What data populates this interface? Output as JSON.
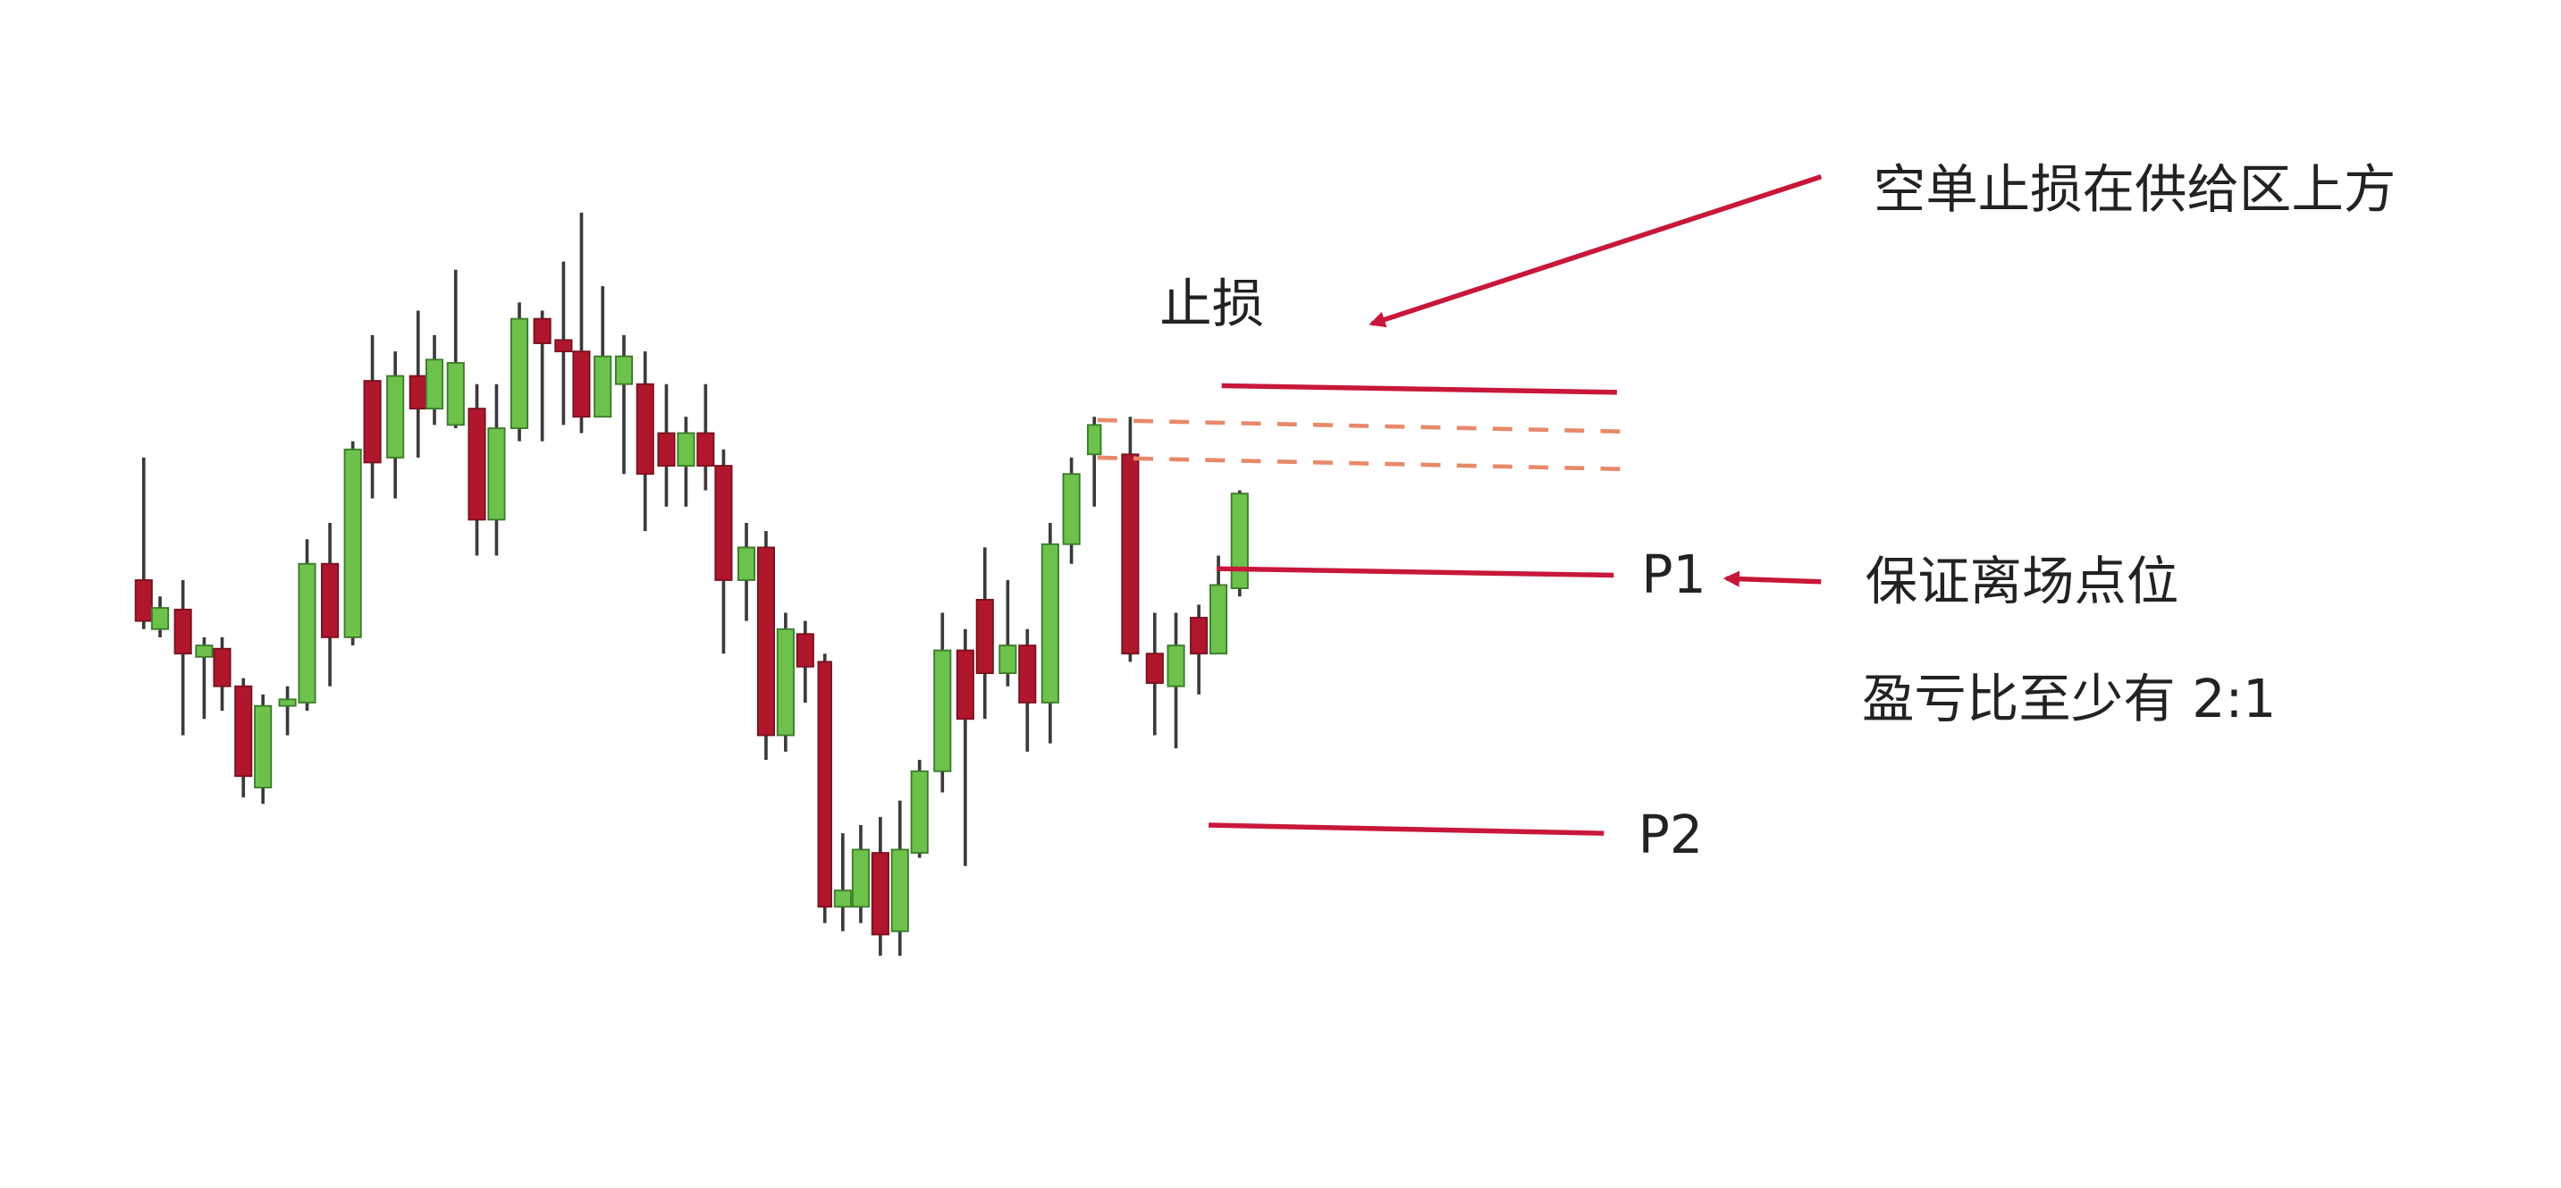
{
  "annotations": {
    "stop_loss_note": "空单止损在供给区上方",
    "stop_loss_label": "止损",
    "p1_label": "P1",
    "exit_note": "保证离场点位",
    "ratio_note": "盈亏比至少有 2:1",
    "p2_label": "P2"
  }
}
